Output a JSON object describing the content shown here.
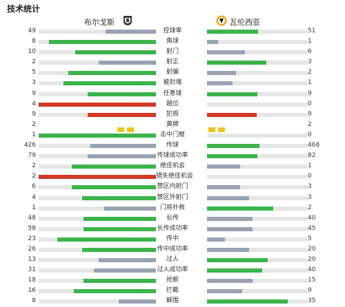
{
  "title": "技术统计",
  "teams": {
    "home": "布尔戈斯",
    "away": "瓦伦西亚"
  },
  "colors": {
    "win": "#3cb44b",
    "loss": "#9aa3b2",
    "red": "#d23a25"
  },
  "stats": [
    {
      "label": "控球率",
      "home": "49",
      "away": "51",
      "hf": 0.43,
      "af": 0.51,
      "hc": "loss",
      "ac": "win"
    },
    {
      "label": "角球",
      "home": "8",
      "away": "1",
      "hf": 0.91,
      "af": 0.11,
      "hc": "win",
      "ac": "loss"
    },
    {
      "label": "射门",
      "home": "10",
      "away": "6",
      "hf": 0.69,
      "af": 0.38,
      "hc": "win",
      "ac": "loss"
    },
    {
      "label": "射正",
      "home": "2",
      "away": "3",
      "hf": 0.49,
      "af": 0.59,
      "hc": "loss",
      "ac": "win"
    },
    {
      "label": "射偏",
      "home": "5",
      "away": "2",
      "hf": 0.75,
      "af": 0.29,
      "hc": "win",
      "ac": "loss"
    },
    {
      "label": "被封堵",
      "home": "3",
      "away": "1",
      "hf": 0.79,
      "af": 0.25,
      "hc": "win",
      "ac": "loss"
    },
    {
      "label": "任意球",
      "home": "9",
      "away": "9",
      "hf": 0.58,
      "af": 0.5,
      "hc": "win",
      "ac": "win"
    },
    {
      "label": "越位",
      "home": "4",
      "away": "0",
      "hf": 1.0,
      "af": 0.0,
      "hc": "red",
      "ac": "loss"
    },
    {
      "label": "犯规",
      "home": "9",
      "away": "9",
      "hf": 0.58,
      "af": 0.49,
      "hc": "red",
      "ac": "red"
    },
    {
      "label": "黄牌",
      "home": "2",
      "away": "2",
      "cards": true,
      "hcards": 2,
      "acards": 2
    },
    {
      "label": "击中门框",
      "home": "1",
      "away": "0",
      "hf": 1.0,
      "af": 0.0,
      "hc": "win",
      "ac": "loss"
    },
    {
      "label": "传球",
      "home": "426",
      "away": "468",
      "hf": 0.56,
      "af": 0.52,
      "hc": "loss",
      "ac": "win"
    },
    {
      "label": "传球成功率",
      "home": "79",
      "away": "82",
      "hf": 0.58,
      "af": 0.5,
      "hc": "loss",
      "ac": "win"
    },
    {
      "label": "绝佳机会",
      "home": "2",
      "away": "1",
      "hf": 0.72,
      "af": 0.33,
      "hc": "win",
      "ac": "loss"
    },
    {
      "label": "错失绝佳机会",
      "home": "2",
      "away": "0",
      "hf": 1.0,
      "af": 0.0,
      "hc": "red",
      "ac": "loss"
    },
    {
      "label": "禁区内射门",
      "home": "6",
      "away": "3",
      "hf": 0.72,
      "af": 0.33,
      "hc": "win",
      "ac": "loss"
    },
    {
      "label": "禁区外射门",
      "home": "4",
      "away": "3",
      "hf": 0.63,
      "af": 0.42,
      "hc": "win",
      "ac": "loss"
    },
    {
      "label": "门将扑救",
      "home": "1",
      "away": "2",
      "hf": 0.44,
      "af": 0.66,
      "hc": "loss",
      "ac": "win"
    },
    {
      "label": "长传",
      "home": "48",
      "away": "40",
      "hf": 0.62,
      "af": 0.45,
      "hc": "win",
      "ac": "loss"
    },
    {
      "label": "长传成功率",
      "home": "58",
      "away": "45",
      "hf": 0.62,
      "af": 0.45,
      "hc": "win",
      "ac": "loss"
    },
    {
      "label": "传中",
      "home": "23",
      "away": "5",
      "hf": 0.84,
      "af": 0.18,
      "hc": "win",
      "ac": "loss"
    },
    {
      "label": "传中成功率",
      "home": "26",
      "away": "20",
      "hf": 0.63,
      "af": 0.42,
      "hc": "win",
      "ac": "loss"
    },
    {
      "label": "过人",
      "home": "13",
      "away": "20",
      "hf": 0.49,
      "af": 0.6,
      "hc": "loss",
      "ac": "win"
    },
    {
      "label": "过人成功率",
      "home": "31",
      "away": "40",
      "hf": 0.53,
      "af": 0.55,
      "hc": "loss",
      "ac": "win"
    },
    {
      "label": "抢断",
      "home": "18",
      "away": "15",
      "hf": 0.62,
      "af": 0.45,
      "hc": "win",
      "ac": "loss"
    },
    {
      "label": "拦截",
      "home": "16",
      "away": "9",
      "hf": 0.7,
      "af": 0.35,
      "hc": "win",
      "ac": "loss"
    },
    {
      "label": "解围",
      "home": "8",
      "away": "35",
      "hf": 0.32,
      "af": 0.8,
      "hc": "loss",
      "ac": "win"
    }
  ]
}
